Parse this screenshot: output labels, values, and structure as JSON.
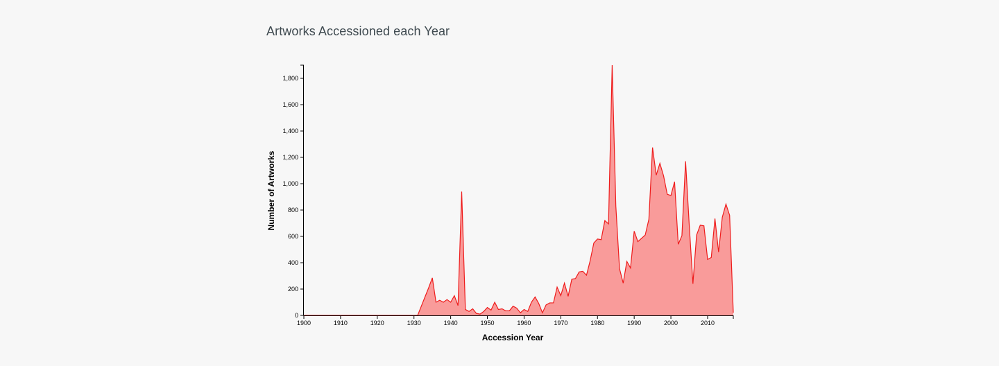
{
  "page": {
    "title": "Artworks Accessioned each Year"
  },
  "chart_data": {
    "type": "area",
    "title": "Artworks Accessioned each Year",
    "xlabel": "Accession Year",
    "ylabel": "Number of Artworks",
    "xlim": [
      1900,
      2017
    ],
    "ylim": [
      0,
      1900
    ],
    "x_ticks": [
      1900,
      1910,
      1920,
      1930,
      1940,
      1950,
      1960,
      1970,
      1980,
      1990,
      2000,
      2010
    ],
    "x_tick_labels": [
      "1900",
      "1910",
      "1920",
      "1930",
      "1940",
      "1950",
      "1960",
      "1970",
      "1980",
      "1990",
      "2000",
      "2010"
    ],
    "y_ticks": [
      0,
      200,
      400,
      600,
      800,
      1000,
      1200,
      1400,
      1600,
      1800
    ],
    "y_tick_labels": [
      "0",
      "200",
      "400",
      "600",
      "800",
      "1,000",
      "1,200",
      "1,400",
      "1,600",
      "1,800"
    ],
    "grid": false,
    "colors": {
      "fill": "#f99b9a",
      "line": "#ee1c1c",
      "axis": "#000000"
    },
    "x": [
      1900,
      1901,
      1902,
      1903,
      1904,
      1905,
      1906,
      1907,
      1908,
      1909,
      1910,
      1911,
      1912,
      1913,
      1914,
      1915,
      1916,
      1917,
      1918,
      1919,
      1920,
      1921,
      1922,
      1923,
      1924,
      1925,
      1926,
      1927,
      1928,
      1929,
      1930,
      1931,
      1932,
      1933,
      1934,
      1935,
      1936,
      1937,
      1938,
      1939,
      1940,
      1941,
      1942,
      1943,
      1944,
      1945,
      1946,
      1947,
      1948,
      1949,
      1950,
      1951,
      1952,
      1953,
      1954,
      1955,
      1956,
      1957,
      1958,
      1959,
      1960,
      1961,
      1962,
      1963,
      1964,
      1965,
      1966,
      1967,
      1968,
      1969,
      1970,
      1971,
      1972,
      1973,
      1974,
      1975,
      1976,
      1977,
      1978,
      1979,
      1980,
      1981,
      1982,
      1983,
      1984,
      1985,
      1986,
      1987,
      1988,
      1989,
      1990,
      1991,
      1992,
      1993,
      1994,
      1995,
      1996,
      1997,
      1998,
      1999,
      2000,
      2001,
      2002,
      2003,
      2004,
      2005,
      2006,
      2007,
      2008,
      2009,
      2010,
      2011,
      2012,
      2013,
      2014,
      2015,
      2016,
      2017
    ],
    "values": [
      0,
      0,
      0,
      0,
      0,
      0,
      0,
      0,
      0,
      0,
      0,
      0,
      0,
      0,
      0,
      0,
      0,
      0,
      0,
      0,
      0,
      0,
      0,
      0,
      0,
      0,
      0,
      0,
      0,
      0,
      0,
      0,
      70,
      140,
      210,
      285,
      100,
      115,
      100,
      120,
      100,
      150,
      75,
      940,
      45,
      30,
      50,
      15,
      10,
      30,
      60,
      40,
      100,
      45,
      50,
      35,
      35,
      70,
      55,
      20,
      45,
      30,
      100,
      140,
      90,
      20,
      80,
      95,
      95,
      215,
      150,
      245,
      145,
      275,
      280,
      330,
      335,
      305,
      415,
      550,
      580,
      575,
      720,
      695,
      1900,
      830,
      355,
      245,
      410,
      360,
      640,
      560,
      585,
      610,
      730,
      1275,
      1065,
      1155,
      1060,
      920,
      910,
      1015,
      540,
      605,
      1170,
      685,
      240,
      610,
      685,
      680,
      425,
      440,
      735,
      480,
      745,
      845,
      760,
      20
    ]
  }
}
